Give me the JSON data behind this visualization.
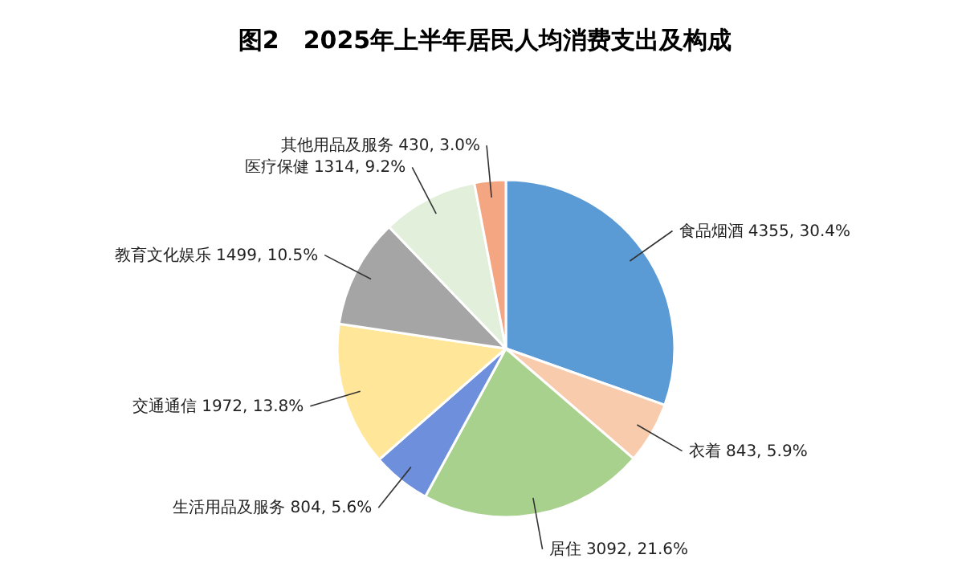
{
  "chart_data": {
    "type": "pie",
    "title": "图2　2025年上半年居民人均消费支出及构成",
    "categories": [
      "食品烟酒",
      "衣着",
      "居住",
      "生活用品及服务",
      "交通通信",
      "教育文化娱乐",
      "医疗保健",
      "其他用品及服务"
    ],
    "values": [
      4355,
      843,
      3092,
      804,
      1972,
      1499,
      1314,
      430
    ],
    "value_labels": [
      "4355, 30.4%",
      "843, 5.9%",
      "3092, 21.6%",
      "804, 5.6%",
      "1972, 13.8%",
      "1499, 10.5%",
      "1314, 9.2%",
      "430, 3.0%"
    ],
    "colors": [
      "#5b9bd5",
      "#f8cbad",
      "#a9d18e",
      "#6d8fdc",
      "#ffe699",
      "#a5a5a5",
      "#e2efda",
      "#f4a582"
    ]
  }
}
